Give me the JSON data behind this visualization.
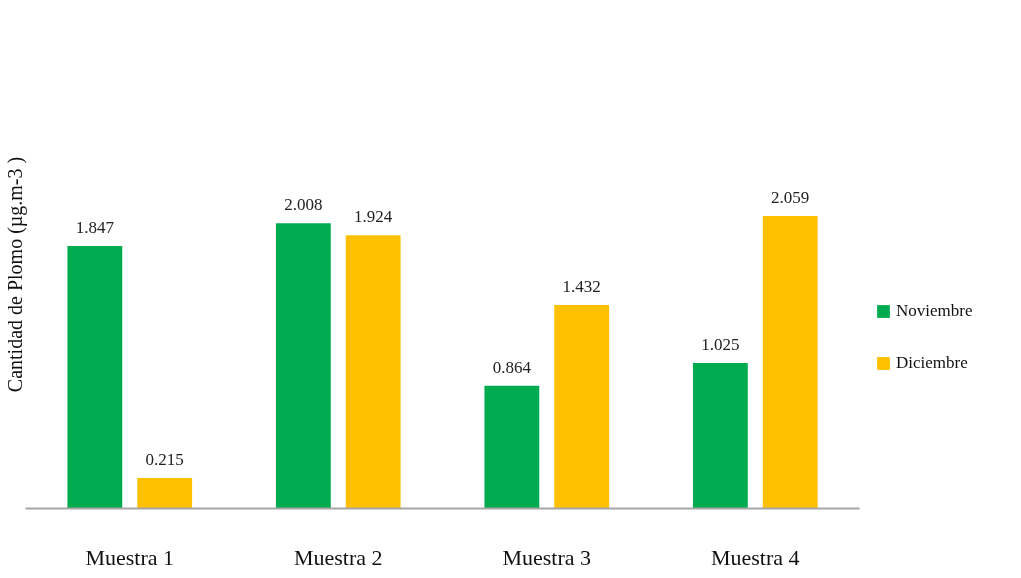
{
  "chart_data": {
    "type": "bar",
    "ylabel": "Cantidad de Plomo (µg.m-3 )",
    "categories": [
      "Muestra 1",
      "Muestra 2",
      "Muestra 3",
      "Muestra 4"
    ],
    "series": [
      {
        "name": "Noviembre",
        "color": "#00ac4f",
        "values": [
          1.847,
          2.008,
          0.864,
          1.025
        ]
      },
      {
        "name": "Diciembre",
        "color": "#ffc000",
        "values": [
          0.215,
          1.924,
          1.432,
          2.059
        ]
      }
    ],
    "data_labels": true,
    "legend": "right",
    "grid": false
  }
}
